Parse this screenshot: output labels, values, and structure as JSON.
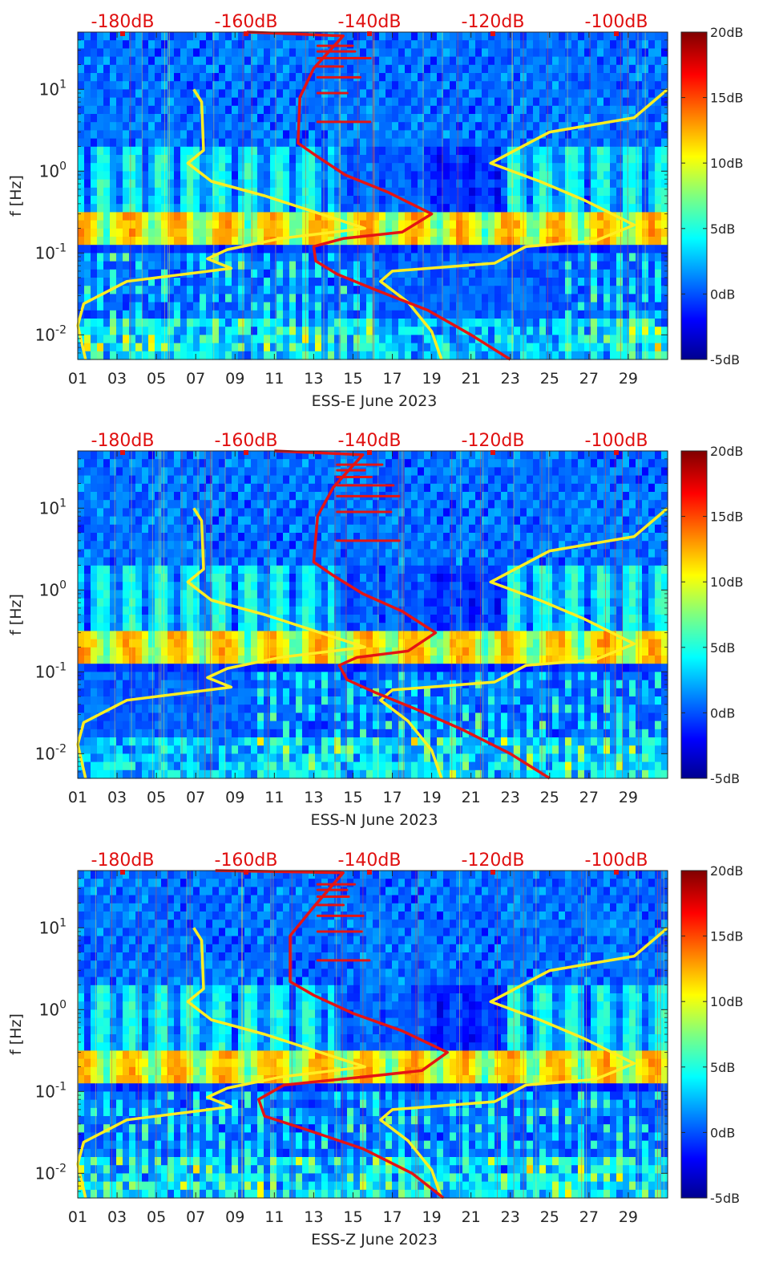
{
  "chart_data": [
    {
      "type": "heatmap",
      "station": "ESS-E",
      "xlabel": "ESS-E June 2023",
      "ylabel": "f [Hz]",
      "xticks": [
        "01",
        "03",
        "05",
        "07",
        "09",
        "11",
        "13",
        "15",
        "17",
        "19",
        "21",
        "23",
        "25",
        "27",
        "29"
      ],
      "xlim": [
        1,
        31
      ],
      "ylim": [
        0.005,
        50
      ],
      "yscale": "log",
      "yticks": [
        {
          "value": 0.01,
          "base": "10",
          "exp": "-2"
        },
        {
          "value": 0.1,
          "base": "10",
          "exp": "-1"
        },
        {
          "value": 1,
          "base": "10",
          "exp": "0"
        },
        {
          "value": 10,
          "base": "10",
          "exp": "1"
        }
      ],
      "top_axis_labels": [
        "-180dB",
        "-160dB",
        "-140dB",
        "-120dB",
        "-100dB"
      ],
      "top_axis_color": "#e01010",
      "colorbar": {
        "ticks": [
          "20dB",
          "15dB",
          "10dB",
          "5dB",
          "0dB",
          "-5dB"
        ],
        "range": [
          -5,
          20
        ]
      },
      "curves": {
        "yellow_low_noise_model": [
          {
            "day": 6.9,
            "f": 10
          },
          {
            "day": 7.3,
            "f": 7.0
          },
          {
            "day": 7.4,
            "f": 1.8
          },
          {
            "day": 6.6,
            "f": 1.25
          },
          {
            "day": 7.8,
            "f": 0.75
          },
          {
            "day": 10.5,
            "f": 0.5
          },
          {
            "day": 15.6,
            "f": 0.2
          },
          {
            "day": 11.3,
            "f": 0.15
          },
          {
            "day": 8.6,
            "f": 0.11
          },
          {
            "day": 7.6,
            "f": 0.085
          },
          {
            "day": 8.8,
            "f": 0.065
          },
          {
            "day": 3.5,
            "f": 0.045
          },
          {
            "day": 1.3,
            "f": 0.024
          },
          {
            "day": 1,
            "f": 0.013
          },
          {
            "day": 1.4,
            "f": 0.005
          }
        ],
        "yellow_high_noise_model": [
          {
            "day": 31,
            "f": 10
          },
          {
            "day": 29.3,
            "f": 4.5
          },
          {
            "day": 25,
            "f": 3
          },
          {
            "day": 22,
            "f": 1.25
          },
          {
            "day": 24.5,
            "f": 0.75
          },
          {
            "day": 26.7,
            "f": 0.45
          },
          {
            "day": 29.3,
            "f": 0.22
          },
          {
            "day": 27.3,
            "f": 0.14
          },
          {
            "day": 23.8,
            "f": 0.12
          },
          {
            "day": 22.2,
            "f": 0.075
          },
          {
            "day": 17,
            "f": 0.06
          },
          {
            "day": 16.4,
            "f": 0.045
          },
          {
            "day": 17.8,
            "f": 0.025
          },
          {
            "day": 19,
            "f": 0.011
          },
          {
            "day": 19.5,
            "f": 0.005
          }
        ],
        "red_noise_floor": [
          {
            "day": 9.6,
            "f": 50
          },
          {
            "day": 14.5,
            "f": 45
          },
          {
            "day": 13,
            "f": 18
          },
          {
            "day": 12.3,
            "f": 8
          },
          {
            "day": 12.2,
            "f": 2.2
          },
          {
            "day": 13.2,
            "f": 1.5
          },
          {
            "day": 14.6,
            "f": 0.9
          },
          {
            "day": 16.8,
            "f": 0.55
          },
          {
            "day": 19,
            "f": 0.3
          },
          {
            "day": 17.5,
            "f": 0.18
          },
          {
            "day": 14.5,
            "f": 0.15
          },
          {
            "day": 13,
            "f": 0.12
          },
          {
            "day": 13.1,
            "f": 0.08
          },
          {
            "day": 14.2,
            "f": 0.055
          },
          {
            "day": 16.2,
            "f": 0.035
          },
          {
            "day": 18.8,
            "f": 0.02
          },
          {
            "day": 21,
            "f": 0.01
          },
          {
            "day": 23,
            "f": 0.005
          }
        ]
      }
    },
    {
      "type": "heatmap",
      "station": "ESS-N",
      "xlabel": "ESS-N June 2023",
      "ylabel": "f [Hz]",
      "xticks": [
        "01",
        "03",
        "05",
        "07",
        "09",
        "11",
        "13",
        "15",
        "17",
        "19",
        "21",
        "23",
        "25",
        "27",
        "29"
      ],
      "xlim": [
        1,
        31
      ],
      "ylim": [
        0.005,
        50
      ],
      "yscale": "log",
      "yticks": [
        {
          "value": 0.01,
          "base": "10",
          "exp": "-2"
        },
        {
          "value": 0.1,
          "base": "10",
          "exp": "-1"
        },
        {
          "value": 1,
          "base": "10",
          "exp": "0"
        },
        {
          "value": 10,
          "base": "10",
          "exp": "1"
        }
      ],
      "top_axis_labels": [
        "-180dB",
        "-160dB",
        "-140dB",
        "-120dB",
        "-100dB"
      ],
      "top_axis_color": "#e01010",
      "colorbar": {
        "ticks": [
          "20dB",
          "15dB",
          "10dB",
          "5dB",
          "0dB",
          "-5dB"
        ],
        "range": [
          -5,
          20
        ]
      },
      "curves": {
        "yellow_low_noise_model": [
          {
            "day": 6.9,
            "f": 10
          },
          {
            "day": 7.3,
            "f": 7.0
          },
          {
            "day": 7.4,
            "f": 1.8
          },
          {
            "day": 6.6,
            "f": 1.25
          },
          {
            "day": 7.8,
            "f": 0.75
          },
          {
            "day": 10.5,
            "f": 0.5
          },
          {
            "day": 15.6,
            "f": 0.2
          },
          {
            "day": 11.3,
            "f": 0.15
          },
          {
            "day": 8.6,
            "f": 0.11
          },
          {
            "day": 7.6,
            "f": 0.085
          },
          {
            "day": 8.8,
            "f": 0.065
          },
          {
            "day": 3.5,
            "f": 0.045
          },
          {
            "day": 1.3,
            "f": 0.024
          },
          {
            "day": 1,
            "f": 0.013
          },
          {
            "day": 1.4,
            "f": 0.005
          }
        ],
        "yellow_high_noise_model": [
          {
            "day": 31,
            "f": 10
          },
          {
            "day": 29.3,
            "f": 4.5
          },
          {
            "day": 25,
            "f": 3
          },
          {
            "day": 22,
            "f": 1.25
          },
          {
            "day": 24.5,
            "f": 0.75
          },
          {
            "day": 26.7,
            "f": 0.45
          },
          {
            "day": 29.3,
            "f": 0.22
          },
          {
            "day": 27.3,
            "f": 0.14
          },
          {
            "day": 23.8,
            "f": 0.12
          },
          {
            "day": 22.2,
            "f": 0.075
          },
          {
            "day": 17,
            "f": 0.06
          },
          {
            "day": 16.4,
            "f": 0.045
          },
          {
            "day": 17.8,
            "f": 0.025
          },
          {
            "day": 19,
            "f": 0.011
          },
          {
            "day": 19.5,
            "f": 0.005
          }
        ],
        "red_noise_floor": [
          {
            "day": 11,
            "f": 50
          },
          {
            "day": 15.5,
            "f": 45
          },
          {
            "day": 14,
            "f": 18
          },
          {
            "day": 13.2,
            "f": 8
          },
          {
            "day": 13,
            "f": 2.2
          },
          {
            "day": 14,
            "f": 1.5
          },
          {
            "day": 15.5,
            "f": 0.9
          },
          {
            "day": 17.5,
            "f": 0.55
          },
          {
            "day": 19.2,
            "f": 0.3
          },
          {
            "day": 17.8,
            "f": 0.18
          },
          {
            "day": 15.2,
            "f": 0.15
          },
          {
            "day": 14.3,
            "f": 0.12
          },
          {
            "day": 14.7,
            "f": 0.08
          },
          {
            "day": 16.2,
            "f": 0.055
          },
          {
            "day": 18.2,
            "f": 0.035
          },
          {
            "day": 20.5,
            "f": 0.02
          },
          {
            "day": 23,
            "f": 0.01
          },
          {
            "day": 25,
            "f": 0.005
          }
        ]
      }
    },
    {
      "type": "heatmap",
      "station": "ESS-Z",
      "xlabel": "ESS-Z June 2023",
      "ylabel": "f [Hz]",
      "xticks": [
        "01",
        "03",
        "05",
        "07",
        "09",
        "11",
        "13",
        "15",
        "17",
        "19",
        "21",
        "23",
        "25",
        "27",
        "29"
      ],
      "xlim": [
        1,
        31
      ],
      "ylim": [
        0.005,
        50
      ],
      "yscale": "log",
      "yticks": [
        {
          "value": 0.01,
          "base": "10",
          "exp": "-2"
        },
        {
          "value": 0.1,
          "base": "10",
          "exp": "-1"
        },
        {
          "value": 1,
          "base": "10",
          "exp": "0"
        },
        {
          "value": 10,
          "base": "10",
          "exp": "1"
        }
      ],
      "top_axis_labels": [
        "-180dB",
        "-160dB",
        "-140dB",
        "-120dB",
        "-100dB"
      ],
      "top_axis_color": "#e01010",
      "colorbar": {
        "ticks": [
          "20dB",
          "15dB",
          "10dB",
          "5dB",
          "0dB",
          "-5dB"
        ],
        "range": [
          -5,
          20
        ]
      },
      "curves": {
        "yellow_low_noise_model": [
          {
            "day": 6.9,
            "f": 10
          },
          {
            "day": 7.3,
            "f": 7.0
          },
          {
            "day": 7.4,
            "f": 1.8
          },
          {
            "day": 6.6,
            "f": 1.25
          },
          {
            "day": 7.8,
            "f": 0.75
          },
          {
            "day": 10.5,
            "f": 0.5
          },
          {
            "day": 15.6,
            "f": 0.2
          },
          {
            "day": 11.3,
            "f": 0.15
          },
          {
            "day": 8.6,
            "f": 0.11
          },
          {
            "day": 7.6,
            "f": 0.085
          },
          {
            "day": 8.8,
            "f": 0.065
          },
          {
            "day": 3.5,
            "f": 0.045
          },
          {
            "day": 1.3,
            "f": 0.024
          },
          {
            "day": 1,
            "f": 0.013
          },
          {
            "day": 1.4,
            "f": 0.005
          }
        ],
        "yellow_high_noise_model": [
          {
            "day": 31,
            "f": 10
          },
          {
            "day": 29.3,
            "f": 4.5
          },
          {
            "day": 25,
            "f": 3
          },
          {
            "day": 22,
            "f": 1.25
          },
          {
            "day": 24.5,
            "f": 0.75
          },
          {
            "day": 26.7,
            "f": 0.45
          },
          {
            "day": 29.3,
            "f": 0.22
          },
          {
            "day": 27.3,
            "f": 0.14
          },
          {
            "day": 23.8,
            "f": 0.12
          },
          {
            "day": 22.2,
            "f": 0.075
          },
          {
            "day": 17,
            "f": 0.06
          },
          {
            "day": 16.4,
            "f": 0.045
          },
          {
            "day": 17.8,
            "f": 0.025
          },
          {
            "day": 19,
            "f": 0.011
          },
          {
            "day": 19.5,
            "f": 0.005
          }
        ],
        "red_noise_floor": [
          {
            "day": 8,
            "f": 50
          },
          {
            "day": 14.5,
            "f": 47
          },
          {
            "day": 13,
            "f": 18
          },
          {
            "day": 11.8,
            "f": 8
          },
          {
            "day": 11.8,
            "f": 2.2
          },
          {
            "day": 13,
            "f": 1.5
          },
          {
            "day": 15,
            "f": 0.9
          },
          {
            "day": 17.5,
            "f": 0.55
          },
          {
            "day": 19.8,
            "f": 0.3
          },
          {
            "day": 18.5,
            "f": 0.18
          },
          {
            "day": 15.5,
            "f": 0.15
          },
          {
            "day": 11.5,
            "f": 0.12
          },
          {
            "day": 10.2,
            "f": 0.08
          },
          {
            "day": 10.5,
            "f": 0.05
          },
          {
            "day": 12.5,
            "f": 0.035
          },
          {
            "day": 15.5,
            "f": 0.02
          },
          {
            "day": 18,
            "f": 0.01
          },
          {
            "day": 19.6,
            "f": 0.005
          }
        ]
      }
    }
  ],
  "colors": {
    "low_model": "#ffee22",
    "high_model": "#ffee22",
    "noise_floor": "#e41414",
    "label_red": "#e01010"
  }
}
